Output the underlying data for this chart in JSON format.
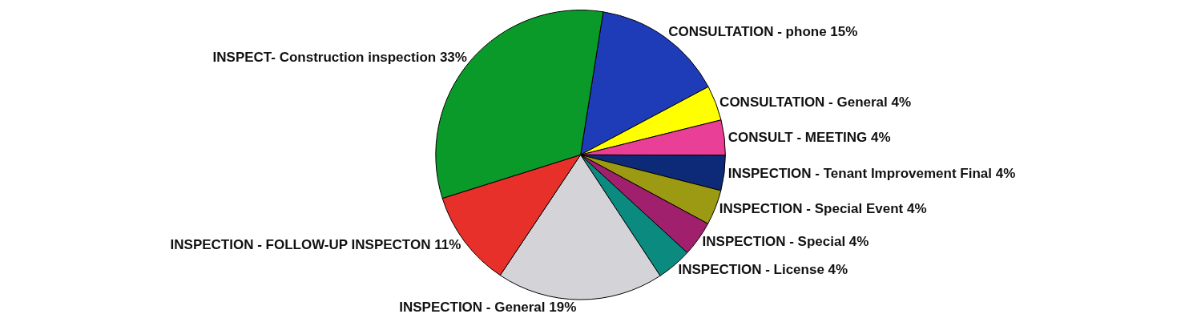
{
  "chart_data": {
    "type": "pie",
    "categories": [
      "CONSULTATION - phone",
      "CONSULTATION - General",
      "CONSULT - MEETING",
      "INSPECTION - Tenant Improvement Final",
      "INSPECTION - Special Event",
      "INSPECTION - Special",
      "INSPECTION - License",
      "INSPECTION - General",
      "INSPECTION - FOLLOW-UP INSPECTON",
      "INSPECT- Construction inspection"
    ],
    "values": [
      15,
      4,
      4,
      4,
      4,
      4,
      4,
      19,
      11,
      33
    ],
    "value_labels": [
      "15%",
      "4%",
      "4%",
      "4%",
      "4%",
      "4%",
      "4%",
      "19%",
      "11%",
      "33%"
    ],
    "colors": [
      "#1f3cb8",
      "#ffff00",
      "#ea3f97",
      "#0c2a78",
      "#9c9a12",
      "#a0206e",
      "#0b8a80",
      "#d4d4d8",
      "#e8302a",
      "#0a9a2a"
    ],
    "legend": false
  }
}
